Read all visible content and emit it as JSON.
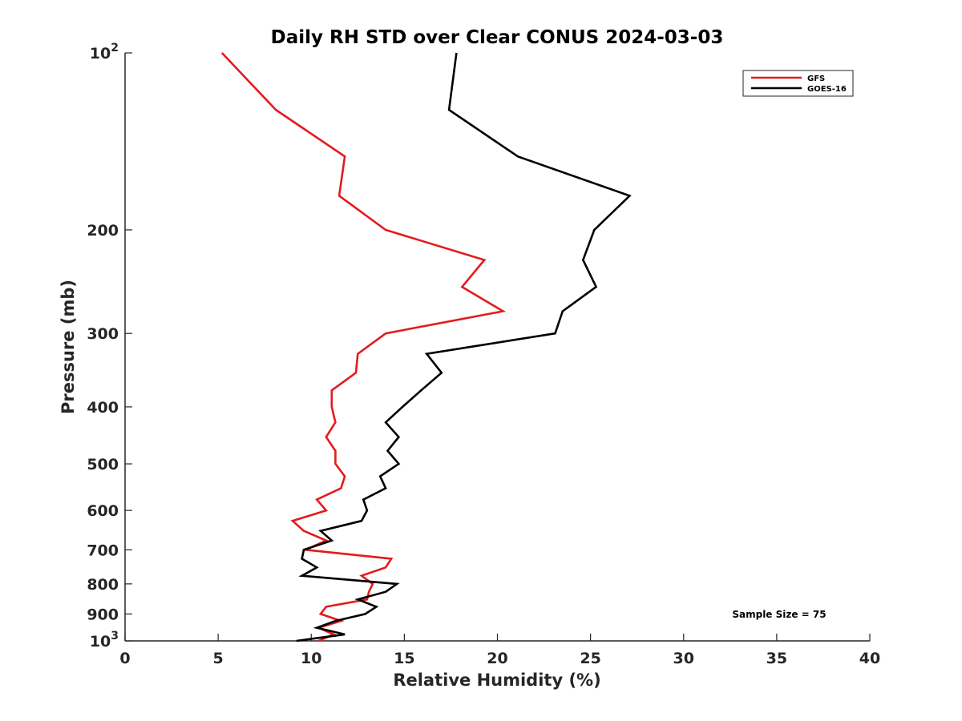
{
  "chart_data": {
    "type": "line",
    "title": "Daily RH STD over Clear CONUS 2024-03-03",
    "xlabel": "Relative Humidity (%)",
    "ylabel": "Pressure (mb)",
    "xlim": [
      0,
      40
    ],
    "ylim": [
      100,
      1000
    ],
    "y_scale": "log",
    "y_reversed": true,
    "grid": false,
    "legend_position": "top-right",
    "x_ticks": [
      0,
      5,
      10,
      15,
      20,
      25,
      30,
      35,
      40
    ],
    "y_ticks": [
      {
        "value": 100,
        "base": "10",
        "exp": "2"
      },
      {
        "value": 200,
        "label": "200"
      },
      {
        "value": 300,
        "label": "300"
      },
      {
        "value": 400,
        "label": "400"
      },
      {
        "value": 500,
        "label": "500"
      },
      {
        "value": 600,
        "label": "600"
      },
      {
        "value": 700,
        "label": "700"
      },
      {
        "value": 800,
        "label": "800"
      },
      {
        "value": 900,
        "label": "900"
      },
      {
        "value": 1000,
        "base": "10",
        "exp": "3"
      }
    ],
    "annotation": "Sample Size = 75",
    "series": [
      {
        "name": "GFS",
        "color": "#e41a1c",
        "points": [
          [
            5.2,
            100
          ],
          [
            8.1,
            125
          ],
          [
            11.8,
            150
          ],
          [
            11.5,
            175
          ],
          [
            14.0,
            200
          ],
          [
            19.3,
            225
          ],
          [
            18.1,
            250
          ],
          [
            20.3,
            275
          ],
          [
            14.0,
            300
          ],
          [
            12.5,
            325
          ],
          [
            12.4,
            350
          ],
          [
            11.1,
            375
          ],
          [
            11.1,
            400
          ],
          [
            11.3,
            425
          ],
          [
            10.8,
            450
          ],
          [
            11.3,
            475
          ],
          [
            11.3,
            500
          ],
          [
            11.8,
            525
          ],
          [
            11.6,
            550
          ],
          [
            10.3,
            575
          ],
          [
            10.8,
            600
          ],
          [
            9.0,
            625
          ],
          [
            9.6,
            650
          ],
          [
            10.8,
            675
          ],
          [
            9.7,
            700
          ],
          [
            14.3,
            725
          ],
          [
            14.0,
            750
          ],
          [
            12.7,
            775
          ],
          [
            13.3,
            800
          ],
          [
            13.1,
            825
          ],
          [
            13.0,
            850
          ],
          [
            10.8,
            875
          ],
          [
            10.5,
            900
          ],
          [
            11.6,
            925
          ],
          [
            10.4,
            950
          ],
          [
            11.2,
            975
          ],
          [
            10.4,
            1000
          ]
        ]
      },
      {
        "name": "GOES-16",
        "color": "#000000",
        "points": [
          [
            17.8,
            100
          ],
          [
            17.4,
            125
          ],
          [
            21.1,
            150
          ],
          [
            27.1,
            175
          ],
          [
            25.2,
            200
          ],
          [
            24.6,
            225
          ],
          [
            25.3,
            250
          ],
          [
            23.5,
            275
          ],
          [
            23.1,
            300
          ],
          [
            16.2,
            325
          ],
          [
            17.0,
            350
          ],
          [
            15.9,
            375
          ],
          [
            14.9,
            400
          ],
          [
            14.0,
            425
          ],
          [
            14.7,
            450
          ],
          [
            14.1,
            475
          ],
          [
            14.7,
            500
          ],
          [
            13.7,
            525
          ],
          [
            14.0,
            550
          ],
          [
            12.8,
            575
          ],
          [
            13.0,
            600
          ],
          [
            12.7,
            625
          ],
          [
            10.5,
            650
          ],
          [
            11.1,
            675
          ],
          [
            9.6,
            700
          ],
          [
            9.5,
            725
          ],
          [
            10.3,
            750
          ],
          [
            9.5,
            775
          ],
          [
            14.6,
            800
          ],
          [
            14.0,
            825
          ],
          [
            12.5,
            850
          ],
          [
            13.5,
            875
          ],
          [
            12.9,
            900
          ],
          [
            11.3,
            925
          ],
          [
            10.3,
            950
          ],
          [
            11.8,
            975
          ],
          [
            9.2,
            1000
          ]
        ]
      }
    ]
  }
}
